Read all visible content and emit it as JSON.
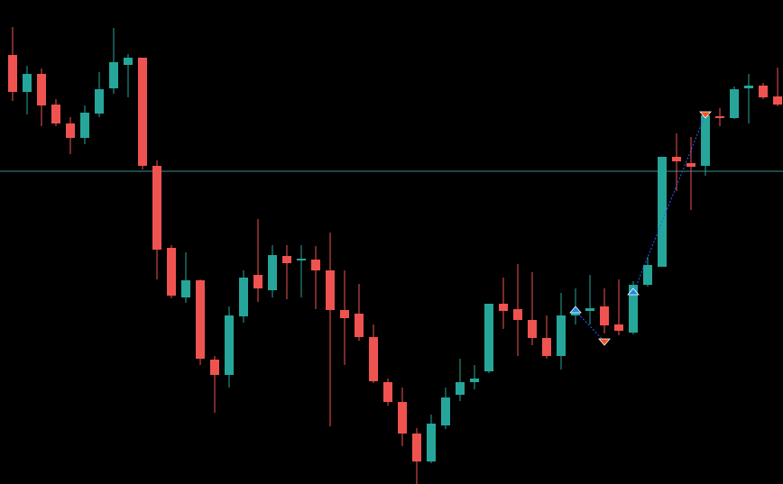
{
  "chart_data": {
    "type": "candlestick",
    "open": [
      476,
      435,
      455,
      421,
      400,
      384,
      411,
      439,
      465,
      473,
      353,
      262,
      207,
      226,
      138,
      121,
      186,
      232,
      215,
      253,
      248,
      249,
      237,
      193,
      189,
      163,
      113,
      91,
      56,
      25,
      65,
      99,
      113,
      125,
      200,
      194,
      182,
      162,
      142,
      187,
      192,
      197,
      177,
      168,
      221,
      241,
      363,
      356,
      353,
      408,
      406,
      439,
      442,
      430
    ],
    "high": [
      507,
      464,
      461,
      427,
      407,
      420,
      457,
      506,
      477,
      473,
      359,
      265,
      257,
      227,
      142,
      197,
      237,
      294,
      265,
      265,
      265,
      264,
      279,
      237,
      222,
      177,
      117,
      107,
      62,
      77,
      107,
      139,
      132,
      200,
      229,
      244,
      235,
      187,
      212,
      217,
      232,
      217,
      227,
      225,
      252,
      363,
      389,
      385,
      411,
      417,
      441,
      455,
      445,
      462
    ],
    "low": [
      425,
      410,
      397,
      397,
      366,
      377,
      407,
      433,
      429,
      349,
      227,
      206,
      201,
      132,
      79,
      107,
      179,
      202,
      207,
      205,
      207,
      194,
      64,
      132,
      159,
      112,
      87,
      42,
      0,
      23,
      61,
      92,
      105,
      123,
      172,
      142,
      154,
      139,
      127,
      177,
      177,
      167,
      165,
      166,
      219,
      241,
      325,
      304,
      342,
      397,
      405,
      400,
      427,
      419
    ],
    "close": [
      435,
      455,
      420,
      400,
      384,
      412,
      438,
      468,
      473,
      353,
      260,
      209,
      226,
      139,
      121,
      187,
      229,
      217,
      254,
      245,
      250,
      237,
      193,
      184,
      163,
      114,
      91,
      56,
      25,
      67,
      96,
      113,
      117,
      200,
      192,
      182,
      162,
      142,
      187,
      191,
      195,
      176,
      170,
      221,
      243,
      363,
      358,
      352,
      409,
      406,
      438,
      442,
      429,
      421
    ],
    "up_color": "#26a69a",
    "down_color": "#ef5350",
    "ylim": [
      0,
      537
    ],
    "reference_line": 347,
    "reference_color": "#3d8b8b"
  }
}
